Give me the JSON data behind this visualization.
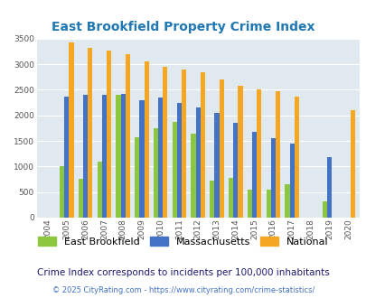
{
  "title": "East Brookfield Property Crime Index",
  "years": [
    2004,
    2005,
    2006,
    2007,
    2008,
    2009,
    2010,
    2011,
    2012,
    2013,
    2014,
    2015,
    2016,
    2017,
    2018,
    2019,
    2020
  ],
  "east_brookfield": [
    null,
    1000,
    750,
    1100,
    2400,
    1575,
    1750,
    1875,
    1650,
    725,
    775,
    550,
    550,
    650,
    null,
    325,
    null
  ],
  "massachusetts": [
    null,
    2375,
    2400,
    2400,
    2425,
    2300,
    2350,
    2250,
    2150,
    2050,
    1850,
    1675,
    1550,
    1450,
    null,
    1175,
    null
  ],
  "national": [
    null,
    3425,
    3325,
    3275,
    3200,
    3050,
    2950,
    2900,
    2850,
    2700,
    2575,
    2500,
    2475,
    2375,
    null,
    null,
    2100
  ],
  "eb_color": "#8DC63F",
  "ma_color": "#4472C4",
  "nat_color": "#F5A623",
  "bg_color": "#DFE9EF",
  "ylabel_max": 3500,
  "yticks": [
    0,
    500,
    1000,
    1500,
    2000,
    2500,
    3000,
    3500
  ],
  "title_color": "#1F78B4",
  "subtitle": "Crime Index corresponds to incidents per 100,000 inhabitants",
  "subtitle_color": "#1a1a6e",
  "footer": "© 2025 CityRating.com - https://www.cityrating.com/crime-statistics/",
  "footer_color": "#4472C4",
  "bar_width": 0.25
}
